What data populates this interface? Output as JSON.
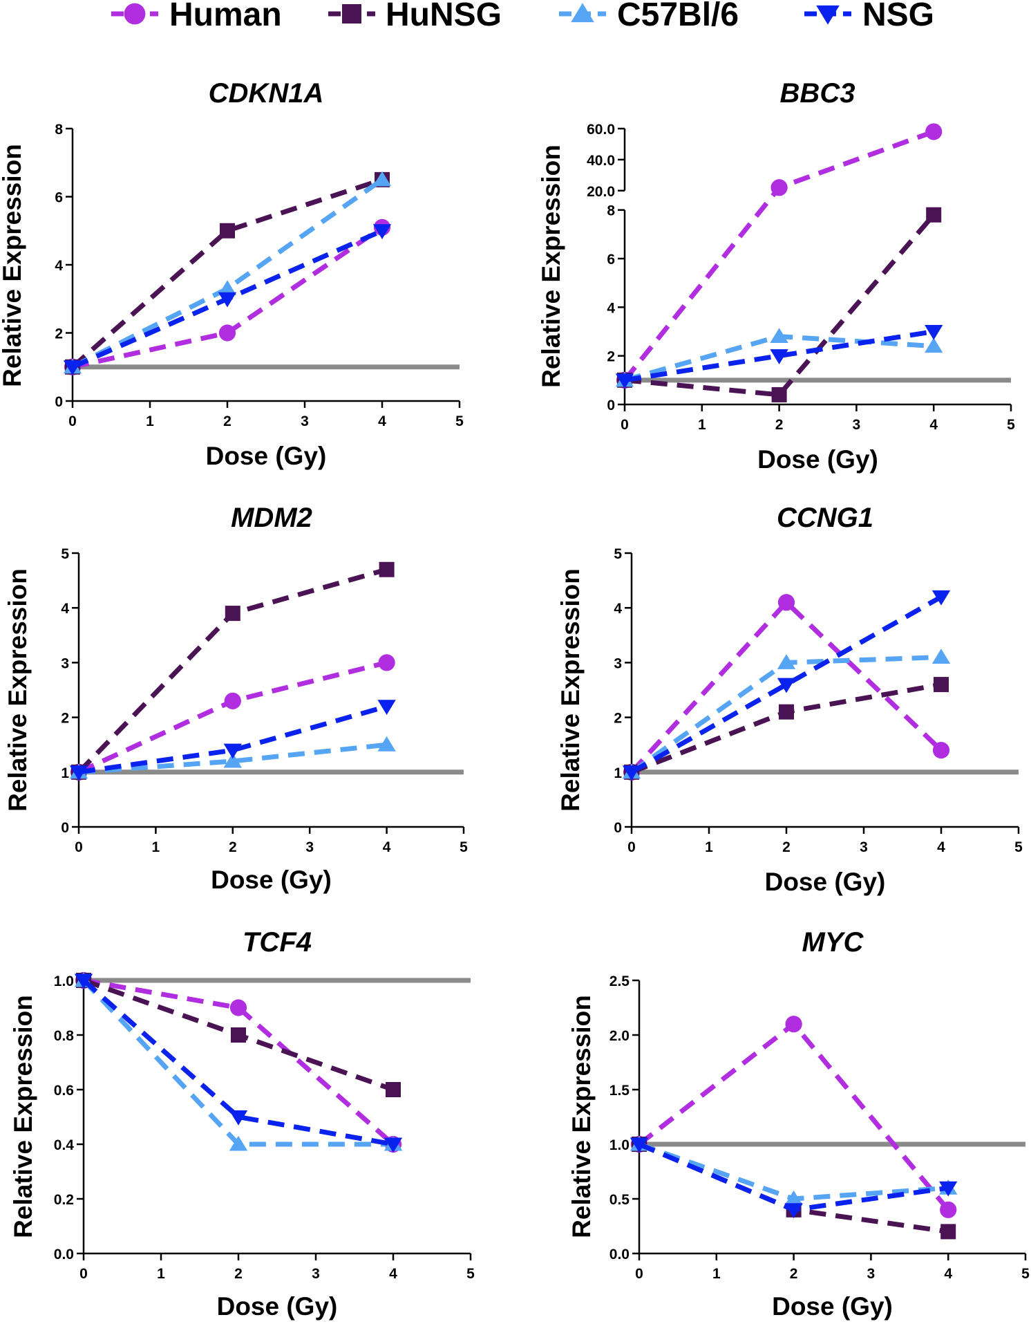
{
  "legend": {
    "entries": [
      {
        "name": "Human",
        "color": "#b02ee0",
        "marker": "circle"
      },
      {
        "name": "HuNSG",
        "color": "#4a1354",
        "marker": "square"
      },
      {
        "name": "C57Bl/6",
        "color": "#56a5f4",
        "marker": "triangle-up"
      },
      {
        "name": "NSG",
        "color": "#0a22ee",
        "marker": "triangle-down"
      }
    ]
  },
  "reference_line": {
    "y": 1.0,
    "color": "#8a8a8a"
  },
  "chart_data": [
    {
      "type": "line",
      "title": "CDKN1A",
      "xlabel": "Dose (Gy)",
      "ylabel": "Relative Expression",
      "x": [
        0,
        2,
        4
      ],
      "xlim": [
        0,
        5
      ],
      "xticks": [
        "0",
        "1",
        "2",
        "3",
        "4",
        "5"
      ],
      "ylim": [
        0,
        8
      ],
      "yticks": [
        "0",
        "2",
        "4",
        "6",
        "8"
      ],
      "series": [
        {
          "name": "Human",
          "values": [
            1,
            2.0,
            5.1
          ]
        },
        {
          "name": "HuNSG",
          "values": [
            1,
            5.0,
            6.5
          ]
        },
        {
          "name": "C57Bl/6",
          "values": [
            1,
            3.3,
            6.5
          ]
        },
        {
          "name": "NSG",
          "values": [
            1,
            3.0,
            5.0
          ]
        }
      ]
    },
    {
      "type": "line",
      "title": "BBC3",
      "xlabel": "Dose (Gy)",
      "ylabel": "Relative Expression",
      "x": [
        0,
        2,
        4
      ],
      "xlim": [
        0,
        5
      ],
      "xticks": [
        "0",
        "1",
        "2",
        "3",
        "4",
        "5"
      ],
      "broken_axis": true,
      "ylim_lower": [
        0,
        8
      ],
      "yticks_lower": [
        "0",
        "2",
        "4",
        "6",
        "8"
      ],
      "ylim_upper": [
        20,
        60
      ],
      "yticks_upper": [
        "20.0",
        "40.0",
        "60.0"
      ],
      "series": [
        {
          "name": "Human",
          "values": [
            1,
            22,
            58
          ]
        },
        {
          "name": "HuNSG",
          "values": [
            1,
            0.4,
            7.8
          ]
        },
        {
          "name": "C57Bl/6",
          "values": [
            1,
            2.8,
            2.4
          ]
        },
        {
          "name": "NSG",
          "values": [
            1,
            2.0,
            3.0
          ]
        }
      ]
    },
    {
      "type": "line",
      "title": "MDM2",
      "xlabel": "Dose (Gy)",
      "ylabel": "Relative Expression",
      "x": [
        0,
        2,
        4
      ],
      "xlim": [
        0,
        5
      ],
      "xticks": [
        "0",
        "1",
        "2",
        "3",
        "4",
        "5"
      ],
      "ylim": [
        0,
        5
      ],
      "yticks": [
        "0",
        "1",
        "2",
        "3",
        "4",
        "5"
      ],
      "series": [
        {
          "name": "Human",
          "values": [
            1,
            2.3,
            3.0
          ]
        },
        {
          "name": "HuNSG",
          "values": [
            1,
            3.9,
            4.7
          ]
        },
        {
          "name": "C57Bl/6",
          "values": [
            1,
            1.2,
            1.5
          ]
        },
        {
          "name": "NSG",
          "values": [
            1,
            1.4,
            2.2
          ]
        }
      ]
    },
    {
      "type": "line",
      "title": "CCNG1",
      "xlabel": "Dose (Gy)",
      "ylabel": "Relative Expression",
      "x": [
        0,
        2,
        4
      ],
      "xlim": [
        0,
        5
      ],
      "xticks": [
        "0",
        "1",
        "2",
        "3",
        "4",
        "5"
      ],
      "ylim": [
        0,
        5
      ],
      "yticks": [
        "0",
        "1",
        "2",
        "3",
        "4",
        "5"
      ],
      "series": [
        {
          "name": "Human",
          "values": [
            1,
            4.1,
            1.4
          ]
        },
        {
          "name": "HuNSG",
          "values": [
            1,
            2.1,
            2.6
          ]
        },
        {
          "name": "C57Bl/6",
          "values": [
            1,
            3.0,
            3.1
          ]
        },
        {
          "name": "NSG",
          "values": [
            1,
            2.6,
            4.2
          ]
        }
      ]
    },
    {
      "type": "line",
      "title": "TCF4",
      "xlabel": "Dose (Gy)",
      "ylabel": "Relative Expression",
      "x": [
        0,
        2,
        4
      ],
      "xlim": [
        0,
        5
      ],
      "xticks": [
        "0",
        "1",
        "2",
        "3",
        "4",
        "5"
      ],
      "ylim": [
        0,
        1
      ],
      "yticks": [
        "0.0",
        "0.2",
        "0.4",
        "0.6",
        "0.8",
        "1.0"
      ],
      "series": [
        {
          "name": "Human",
          "values": [
            1,
            0.9,
            0.4
          ]
        },
        {
          "name": "HuNSG",
          "values": [
            1,
            0.8,
            0.6
          ]
        },
        {
          "name": "C57Bl/6",
          "values": [
            1,
            0.4,
            0.4
          ]
        },
        {
          "name": "NSG",
          "values": [
            1,
            0.5,
            0.4
          ]
        }
      ]
    },
    {
      "type": "line",
      "title": "MYC",
      "xlabel": "Dose (Gy)",
      "ylabel": "Relative Expression",
      "x": [
        0,
        2,
        4
      ],
      "xlim": [
        0,
        5
      ],
      "xticks": [
        "0",
        "1",
        "2",
        "3",
        "4",
        "5"
      ],
      "ylim": [
        0,
        2.5
      ],
      "yticks": [
        "0.0",
        "0.5",
        "1.0",
        "1.5",
        "2.0",
        "2.5"
      ],
      "series": [
        {
          "name": "Human",
          "values": [
            1,
            2.1,
            0.4
          ]
        },
        {
          "name": "HuNSG",
          "values": [
            1,
            0.4,
            0.2
          ]
        },
        {
          "name": "C57Bl/6",
          "values": [
            1,
            0.5,
            0.6
          ]
        },
        {
          "name": "NSG",
          "values": [
            1,
            0.4,
            0.6
          ]
        }
      ]
    }
  ]
}
